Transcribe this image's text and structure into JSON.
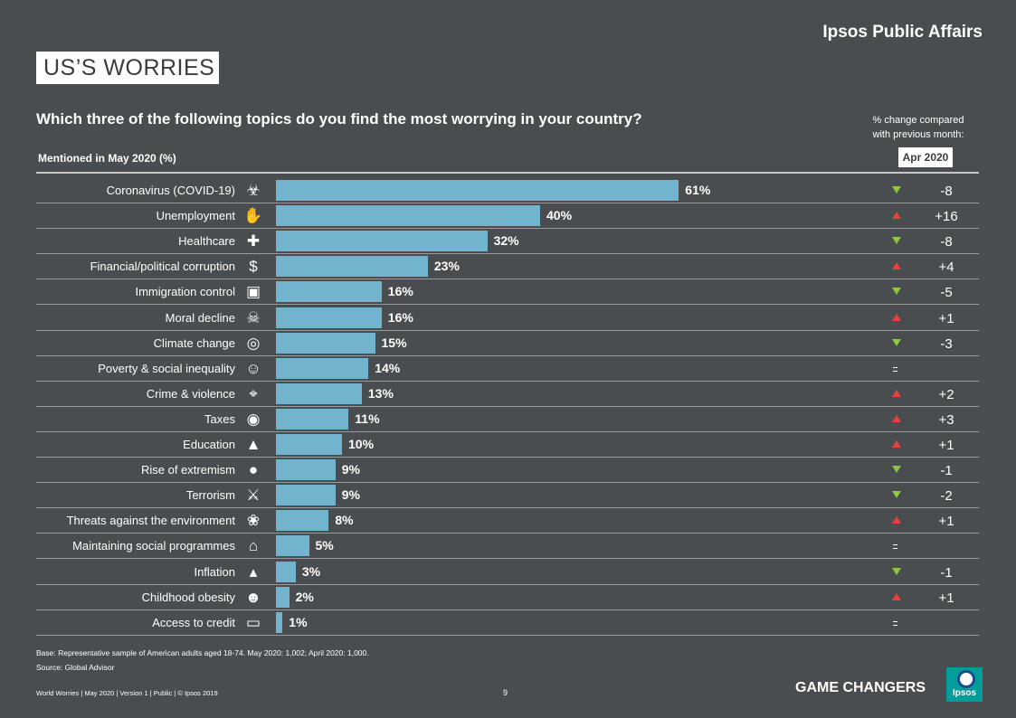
{
  "header": {
    "brand": "Ipsos Public Affairs",
    "title": "US’S WORRIES",
    "question": "Which three of the following topics do you find the most worrying in your country?",
    "change_line1": "% change compared",
    "change_line2": "with previous month:",
    "change_period": "Apr 2020",
    "mentioned": "Mentioned in May 2020 (%)"
  },
  "chart_data": {
    "type": "bar",
    "orientation": "horizontal",
    "title": "Which three of the following topics do you find the most worrying in your country?",
    "xlabel": "Mentioned in May 2020 (%)",
    "categories": [
      "Coronavirus (COVID-19)",
      "Unemployment",
      "Healthcare",
      "Financial/political corruption",
      "Immigration control",
      "Moral decline",
      "Climate change",
      "Poverty & social inequality",
      "Crime & violence",
      "Taxes",
      "Education",
      "Rise of extremism",
      "Terrorism",
      "Threats against the environment",
      "Maintaining social programmes",
      "Inflation",
      "Childhood obesity",
      "Access to credit"
    ],
    "values": [
      61,
      40,
      32,
      23,
      16,
      16,
      15,
      14,
      13,
      11,
      10,
      9,
      9,
      8,
      5,
      3,
      2,
      1
    ],
    "value_labels": [
      "61%",
      "40%",
      "32%",
      "23%",
      "16%",
      "16%",
      "15%",
      "14%",
      "13%",
      "11%",
      "10%",
      "9%",
      "9%",
      "8%",
      "5%",
      "3%",
      "2%",
      "1%"
    ],
    "changes": [
      "-8",
      "+16",
      "-8",
      "+4",
      "-5",
      "+1",
      "-3",
      "=",
      "+2",
      "+3",
      "+1",
      "-1",
      "-2",
      "+1",
      "=",
      "-1",
      "+1",
      "="
    ],
    "change_direction": [
      "down",
      "up",
      "down",
      "up",
      "down",
      "up",
      "down",
      "eq",
      "up",
      "up",
      "up",
      "down",
      "down",
      "up",
      "eq",
      "down",
      "up",
      "eq"
    ],
    "icons": [
      "biohazard-icon",
      "unemployment-icon",
      "nurse-cap-icon",
      "money-bag-icon",
      "suitcase-icon",
      "moral-decline-icon",
      "globe-fire-icon",
      "person-icon",
      "gun-icon",
      "tax-icon",
      "graduation-cap-icon",
      "balaclava-icon",
      "terrorism-icon",
      "swan-icon",
      "social-programme-icon",
      "inflation-chart-icon",
      "obesity-icon",
      "credit-card-icon"
    ],
    "colors": {
      "bar": "#72b4cd",
      "up": "#e8403a",
      "down": "#8dc63f"
    },
    "xlim": [
      0,
      100
    ]
  },
  "footer": {
    "base": "Base: Representative sample of American adults aged 18-74. May 2020: 1,002; April 2020: 1,000.",
    "source": "Source: Global Advisor",
    "meta": "World Worries  |  May 2020  |  Version 1  |  Public  |  © Ipsos 2019",
    "page": "9",
    "tagline": "GAME CHANGERS",
    "logo_text": "Ipsos"
  }
}
